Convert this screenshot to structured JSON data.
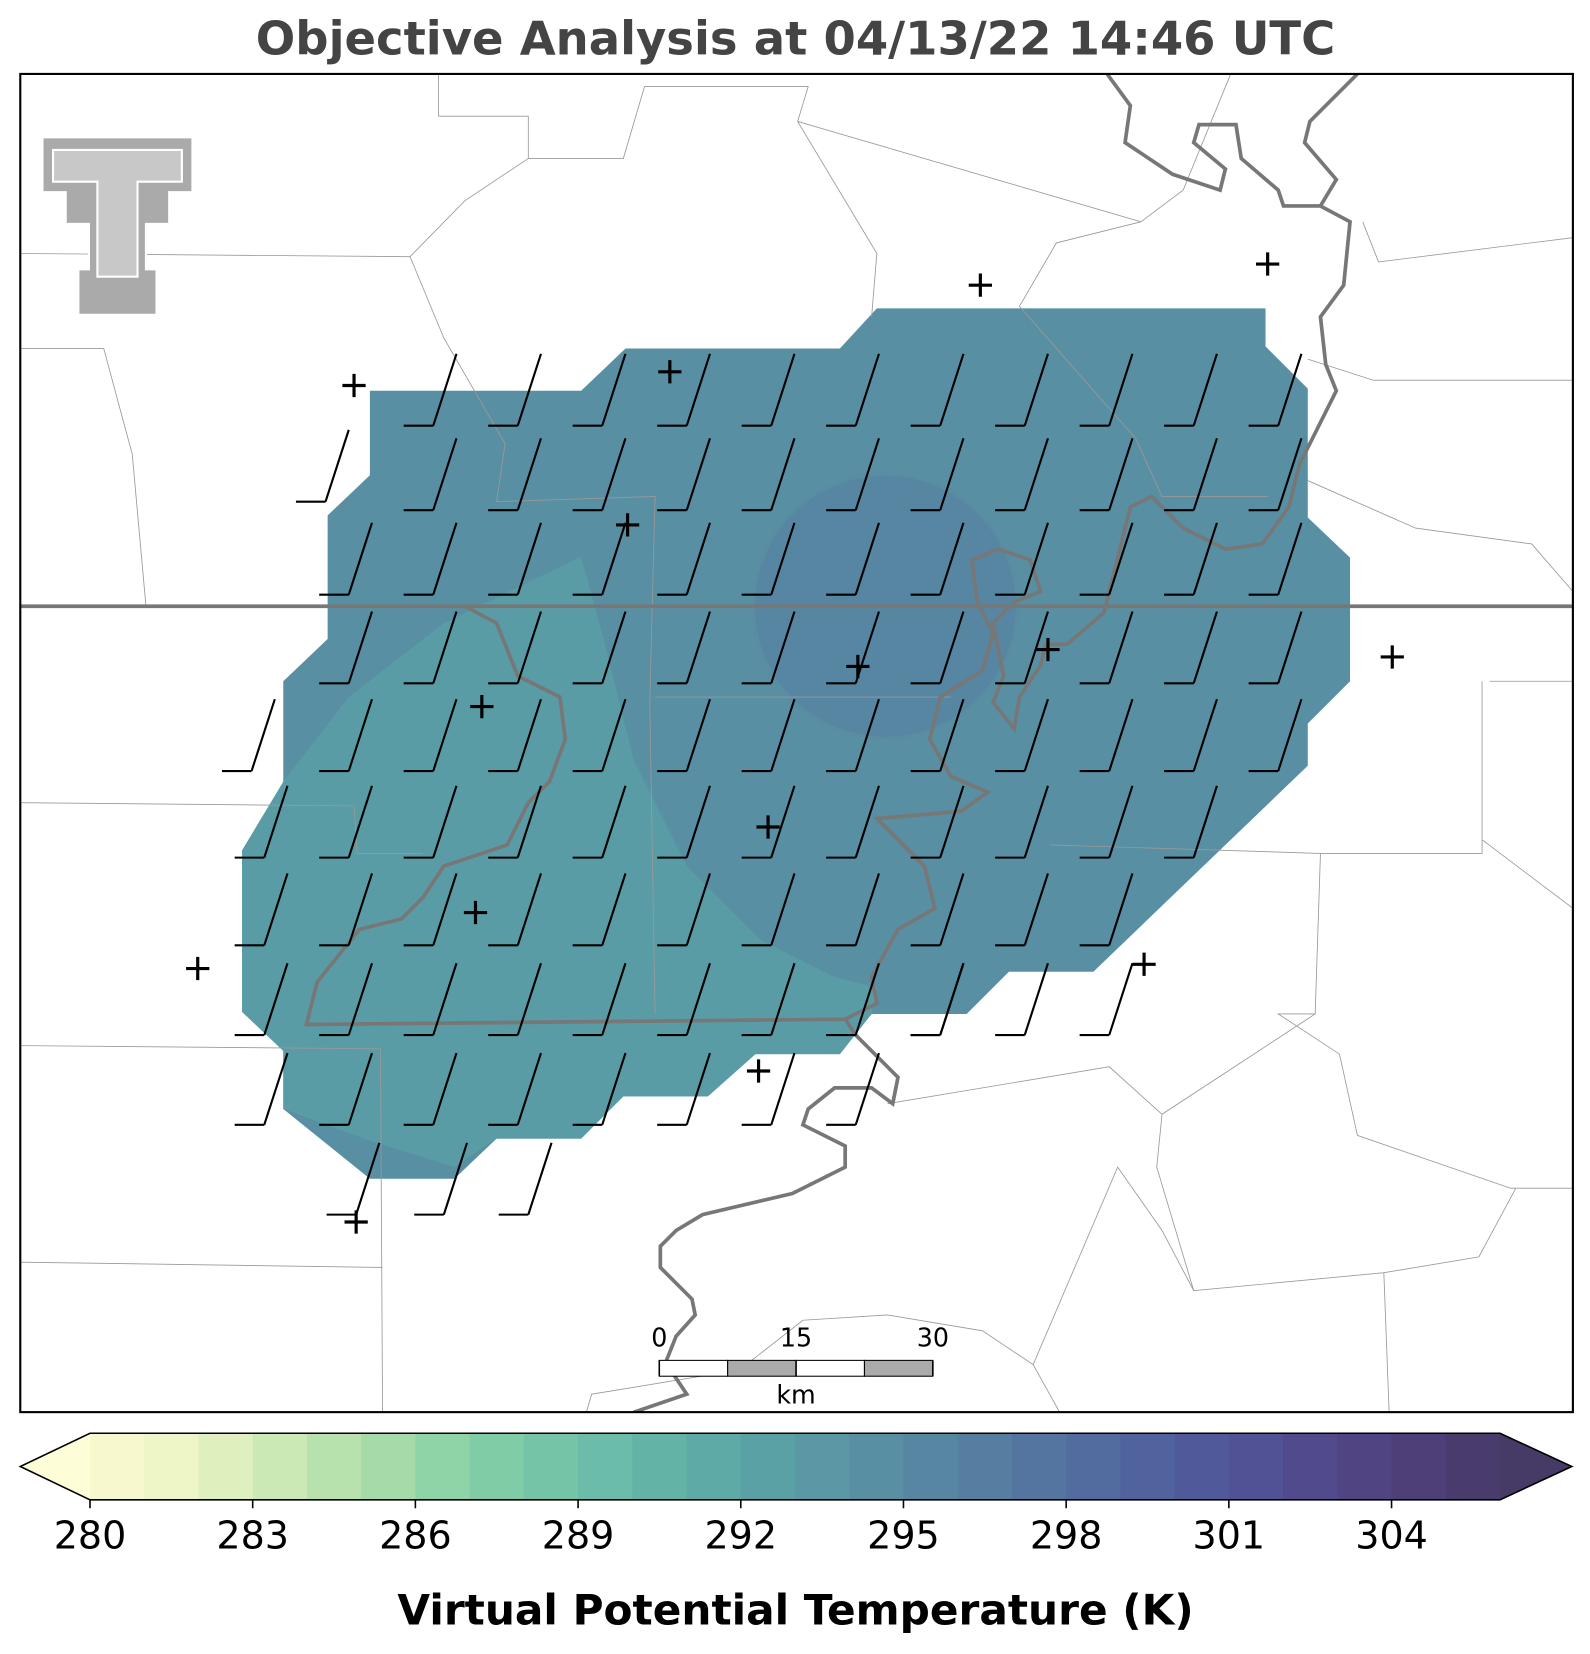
{
  "title": "Objective Analysis at 04/13/22 14:46 UTC",
  "colorbar": {
    "label": "Virtual Potential Temperature (K)",
    "lim": [
      280,
      306
    ],
    "ticks": [
      280,
      283,
      286,
      289,
      292,
      295,
      298,
      301,
      304
    ],
    "extend": "both",
    "under_color": "#fdfdd8",
    "over_color": "#463a66",
    "colors": [
      "#f7f8cd",
      "#eef5c6",
      "#dff0be",
      "#cbe9b5",
      "#b8e2ad",
      "#a4dba8",
      "#8fd4a6",
      "#7fcca7",
      "#75c4a8",
      "#6bbca8",
      "#63b3a7",
      "#5eaaa6",
      "#5aa1a5",
      "#5998a4",
      "#588fa3",
      "#5786a2",
      "#557ea1",
      "#5475a0",
      "#526c9f",
      "#51639e",
      "#505a9b",
      "#515195",
      "#514a8c",
      "#504482",
      "#4e3f78",
      "#4a3b6d"
    ]
  },
  "scale_bar": {
    "ticks": [
      0,
      15,
      30
    ],
    "unit": "km"
  }
}
